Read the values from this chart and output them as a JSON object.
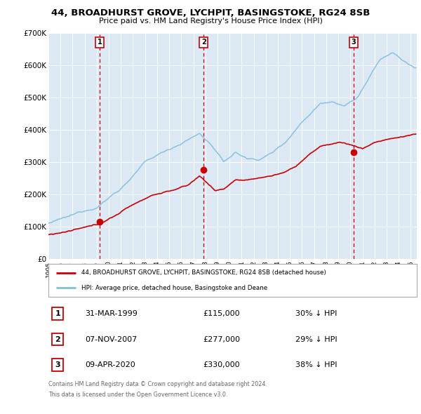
{
  "title": "44, BROADHURST GROVE, LYCHPIT, BASINGSTOKE, RG24 8SB",
  "subtitle": "Price paid vs. HM Land Registry's House Price Index (HPI)",
  "background_color": "#dce9f5",
  "plot_bg_color": "#dce9f5",
  "hpi_color": "#7fbfdf",
  "price_color": "#cc0000",
  "marker_color": "#cc0000",
  "dashed_line_color": "#cc0000",
  "ylim": [
    0,
    700000
  ],
  "yticks": [
    0,
    100000,
    200000,
    300000,
    400000,
    500000,
    600000,
    700000
  ],
  "ytick_labels": [
    "£0",
    "£100K",
    "£200K",
    "£300K",
    "£400K",
    "£500K",
    "£600K",
    "£700K"
  ],
  "xlim_start": 1995.0,
  "xlim_end": 2025.5,
  "purchase_points": [
    {
      "label": "1",
      "date_str": "31-MAR-1999",
      "year": 1999.25,
      "price": 115000,
      "pct": "30%",
      "dir": "↓"
    },
    {
      "label": "2",
      "date_str": "07-NOV-2007",
      "year": 2007.85,
      "price": 277000,
      "pct": "29%",
      "dir": "↓"
    },
    {
      "label": "3",
      "date_str": "09-APR-2020",
      "year": 2020.27,
      "price": 330000,
      "pct": "38%",
      "dir": "↓"
    }
  ],
  "legend_line1": "44, BROADHURST GROVE, LYCHPIT, BASINGSTOKE, RG24 8SB (detached house)",
  "legend_line2": "HPI: Average price, detached house, Basingstoke and Deane",
  "footer_line1": "Contains HM Land Registry data © Crown copyright and database right 2024.",
  "footer_line2": "This data is licensed under the Open Government Licence v3.0.",
  "table_rows": [
    [
      "1",
      "31-MAR-1999",
      "£115,000",
      "30% ↓ HPI"
    ],
    [
      "2",
      "07-NOV-2007",
      "£277,000",
      "29% ↓ HPI"
    ],
    [
      "3",
      "09-APR-2020",
      "£330,000",
      "38% ↓ HPI"
    ]
  ]
}
